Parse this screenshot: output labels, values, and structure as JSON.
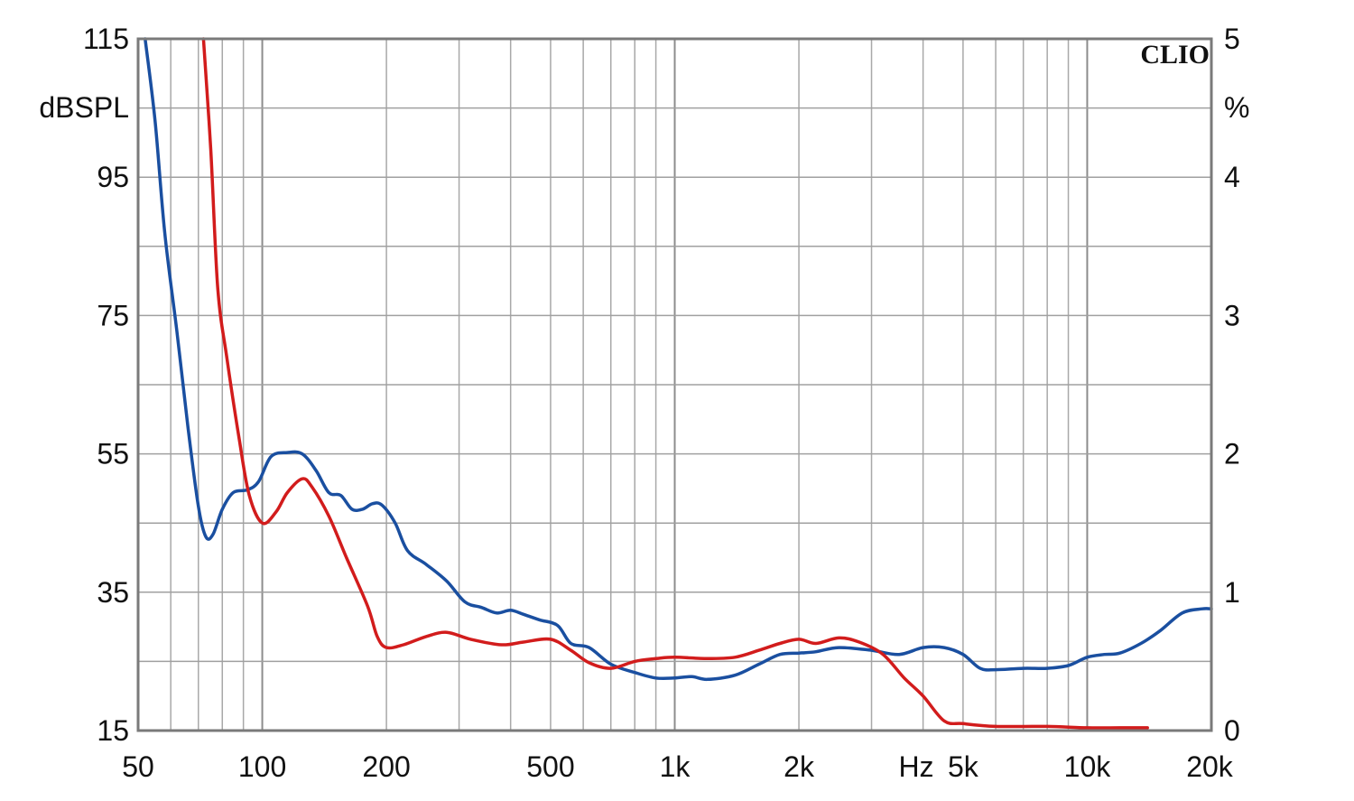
{
  "chart_data": {
    "type": "line",
    "brand": "CLIO",
    "y_left": {
      "label": "dBSPL",
      "ylim": [
        15,
        115
      ],
      "ticks": [
        {
          "v": 115,
          "t": "115"
        },
        {
          "v": 95,
          "t": "95"
        },
        {
          "v": 75,
          "t": "75"
        },
        {
          "v": 55,
          "t": "55"
        },
        {
          "v": 35,
          "t": "35"
        },
        {
          "v": 15,
          "t": "15"
        }
      ]
    },
    "y_right": {
      "label": "%",
      "ylim": [
        0,
        5
      ],
      "ticks": [
        {
          "v": 5,
          "t": "5"
        },
        {
          "v": 4,
          "t": "4"
        },
        {
          "v": 3,
          "t": "3"
        },
        {
          "v": 2,
          "t": "2"
        },
        {
          "v": 1,
          "t": "1"
        },
        {
          "v": 0,
          "t": "0"
        }
      ]
    },
    "x": {
      "label": "Hz",
      "scale": "log",
      "xlim": [
        50,
        20000
      ],
      "ticks": [
        {
          "v": 50,
          "t": "50"
        },
        {
          "v": 100,
          "t": "100"
        },
        {
          "v": 200,
          "t": "200"
        },
        {
          "v": 500,
          "t": "500"
        },
        {
          "v": 1000,
          "t": "1k"
        },
        {
          "v": 2000,
          "t": "2k"
        },
        {
          "v": 5000,
          "t": "5k"
        },
        {
          "v": 10000,
          "t": "10k"
        },
        {
          "v": 20000,
          "t": "20k"
        }
      ]
    },
    "grid": true,
    "series": [
      {
        "color": "#1a4fa0",
        "axis": "right",
        "points": [
          [
            52,
            5.0
          ],
          [
            55,
            4.4
          ],
          [
            58,
            3.6
          ],
          [
            62,
            2.9
          ],
          [
            66,
            2.2
          ],
          [
            70,
            1.62
          ],
          [
            73,
            1.4
          ],
          [
            76,
            1.42
          ],
          [
            80,
            1.6
          ],
          [
            85,
            1.72
          ],
          [
            92,
            1.74
          ],
          [
            98,
            1.8
          ],
          [
            105,
            1.98
          ],
          [
            115,
            2.01
          ],
          [
            125,
            2.0
          ],
          [
            135,
            1.88
          ],
          [
            145,
            1.72
          ],
          [
            155,
            1.7
          ],
          [
            165,
            1.6
          ],
          [
            175,
            1.6
          ],
          [
            185,
            1.64
          ],
          [
            195,
            1.63
          ],
          [
            210,
            1.5
          ],
          [
            225,
            1.3
          ],
          [
            250,
            1.2
          ],
          [
            280,
            1.08
          ],
          [
            310,
            0.93
          ],
          [
            340,
            0.89
          ],
          [
            370,
            0.85
          ],
          [
            400,
            0.87
          ],
          [
            430,
            0.84
          ],
          [
            470,
            0.8
          ],
          [
            520,
            0.76
          ],
          [
            560,
            0.63
          ],
          [
            620,
            0.6
          ],
          [
            700,
            0.48
          ],
          [
            800,
            0.42
          ],
          [
            900,
            0.38
          ],
          [
            1000,
            0.38
          ],
          [
            1100,
            0.39
          ],
          [
            1200,
            0.37
          ],
          [
            1400,
            0.4
          ],
          [
            1600,
            0.48
          ],
          [
            1800,
            0.55
          ],
          [
            2000,
            0.56
          ],
          [
            2200,
            0.57
          ],
          [
            2500,
            0.6
          ],
          [
            3000,
            0.58
          ],
          [
            3500,
            0.55
          ],
          [
            4000,
            0.6
          ],
          [
            4500,
            0.6
          ],
          [
            5000,
            0.55
          ],
          [
            5500,
            0.45
          ],
          [
            6000,
            0.44
          ],
          [
            7000,
            0.45
          ],
          [
            8000,
            0.45
          ],
          [
            9000,
            0.47
          ],
          [
            10000,
            0.53
          ],
          [
            11000,
            0.55
          ],
          [
            12000,
            0.56
          ],
          [
            13500,
            0.63
          ],
          [
            15000,
            0.72
          ],
          [
            17000,
            0.85
          ],
          [
            19000,
            0.88
          ],
          [
            20000,
            0.88
          ]
        ]
      },
      {
        "color": "#d21c1c",
        "axis": "right",
        "points": [
          [
            72,
            5.0
          ],
          [
            75,
            4.2
          ],
          [
            78,
            3.2
          ],
          [
            82,
            2.7
          ],
          [
            88,
            2.1
          ],
          [
            93,
            1.7
          ],
          [
            100,
            1.5
          ],
          [
            108,
            1.58
          ],
          [
            115,
            1.72
          ],
          [
            125,
            1.82
          ],
          [
            132,
            1.76
          ],
          [
            145,
            1.55
          ],
          [
            160,
            1.25
          ],
          [
            180,
            0.9
          ],
          [
            190,
            0.68
          ],
          [
            200,
            0.6
          ],
          [
            220,
            0.62
          ],
          [
            250,
            0.68
          ],
          [
            280,
            0.71
          ],
          [
            320,
            0.66
          ],
          [
            380,
            0.62
          ],
          [
            430,
            0.64
          ],
          [
            500,
            0.66
          ],
          [
            560,
            0.58
          ],
          [
            620,
            0.49
          ],
          [
            700,
            0.45
          ],
          [
            800,
            0.5
          ],
          [
            900,
            0.52
          ],
          [
            1000,
            0.53
          ],
          [
            1200,
            0.52
          ],
          [
            1400,
            0.53
          ],
          [
            1600,
            0.58
          ],
          [
            1800,
            0.63
          ],
          [
            2000,
            0.66
          ],
          [
            2200,
            0.63
          ],
          [
            2500,
            0.67
          ],
          [
            2800,
            0.64
          ],
          [
            3200,
            0.55
          ],
          [
            3600,
            0.38
          ],
          [
            4000,
            0.25
          ],
          [
            4500,
            0.07
          ],
          [
            5000,
            0.05
          ],
          [
            6000,
            0.03
          ],
          [
            8000,
            0.03
          ],
          [
            10000,
            0.02
          ],
          [
            12000,
            0.02
          ],
          [
            14000,
            0.02
          ]
        ]
      }
    ]
  }
}
